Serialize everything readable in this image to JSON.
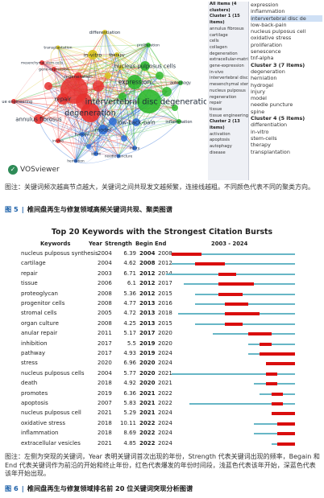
{
  "figure5": {
    "network_labels": [
      {
        "text": "differentiation",
        "id": "differentiation"
      },
      {
        "text": "proliferation",
        "id": "proliferation"
      },
      {
        "text": "transplantation",
        "id": "transplantation"
      },
      {
        "text": "in-vitro",
        "id": "in-vitro"
      },
      {
        "text": "therapy",
        "id": "therapy"
      },
      {
        "text": "mesenchymal stem-cells",
        "id": "mesenchymal"
      },
      {
        "text": "nucleus pulposus cells",
        "id": "np-cells"
      },
      {
        "text": "gene-expression",
        "id": "gene-expression"
      },
      {
        "text": "regeneration",
        "id": "regeneration"
      },
      {
        "text": "expression",
        "id": "expression"
      },
      {
        "text": "autophagy",
        "id": "autophagy"
      },
      {
        "text": "tissue engineering",
        "id": "tissue-engineering"
      },
      {
        "text": "repair",
        "id": "repair"
      },
      {
        "text": "intervertebral disc degeneration",
        "id": "ivdd"
      },
      {
        "text": "degeneration",
        "id": "degeneration"
      },
      {
        "text": "annulus fibrosus",
        "id": "annulus"
      },
      {
        "text": "low-back-pain",
        "id": "lbp"
      },
      {
        "text": "inflammation",
        "id": "inflammation"
      },
      {
        "text": "model",
        "id": "model"
      },
      {
        "text": "hydrogel",
        "id": "hydrogel"
      },
      {
        "text": "in-vivo",
        "id": "in-vivo"
      },
      {
        "text": "injury",
        "id": "injury"
      },
      {
        "text": "spine",
        "id": "spine"
      },
      {
        "text": "needle puncture",
        "id": "needle"
      },
      {
        "text": "herniation",
        "id": "herniation"
      }
    ],
    "vos_label": "VOSviewer",
    "cluster_panel": {
      "header": "All items (4 clusters)",
      "left": [
        {
          "text": "Cluster 1 (15 items)",
          "head": true
        },
        {
          "text": "annulus fibrosus"
        },
        {
          "text": "cartilage"
        },
        {
          "text": "cells"
        },
        {
          "text": "collagen"
        },
        {
          "text": "degeneration"
        },
        {
          "text": "extracellular-matrix"
        },
        {
          "text": "gene-expression"
        },
        {
          "text": "in-vivo"
        },
        {
          "text": "intervertebral disc"
        },
        {
          "text": "mesenchymal stem-ce"
        },
        {
          "text": "nucleus pulposus"
        },
        {
          "text": "regeneration"
        },
        {
          "text": "repair"
        },
        {
          "text": "tissue"
        },
        {
          "text": "tissue engineering"
        },
        {
          "text": "Cluster 2 (13 items)",
          "head": true
        },
        {
          "text": "activation"
        },
        {
          "text": "apoptosis"
        },
        {
          "text": "autophagy"
        },
        {
          "text": "disease"
        }
      ],
      "right": [
        {
          "text": "expression"
        },
        {
          "text": "inflammation"
        },
        {
          "text": "intervertebral disc de",
          "selected": true
        },
        {
          "text": "low-back-pain"
        },
        {
          "text": "nucleus pulposus cell"
        },
        {
          "text": "oxidative stress"
        },
        {
          "text": "proliferation"
        },
        {
          "text": "senescence"
        },
        {
          "text": "tnf-alpha"
        },
        {
          "text": "Cluster 3 (7 items)",
          "head": true
        },
        {
          "text": "degeneration"
        },
        {
          "text": "herniation"
        },
        {
          "text": "hydrogel"
        },
        {
          "text": "injury"
        },
        {
          "text": "model"
        },
        {
          "text": "needle puncture"
        },
        {
          "text": "spine"
        },
        {
          "text": "Cluster 4 (5 items)",
          "head": true
        },
        {
          "text": "differentiation"
        },
        {
          "text": "in-vitro"
        },
        {
          "text": "stem-cells"
        },
        {
          "text": "therapy"
        },
        {
          "text": "transplantation"
        }
      ]
    },
    "caption": "图注：关键词频次越高节点越大，关键词之间共现发文越频繁，连接线越粗。不同颜色代表不同的聚类方向。",
    "title_num": "图 5",
    "title_text": "椎间盘再生与修复领域高频关键词共现、聚类图谱"
  },
  "chart_data": {
    "type": "table",
    "title": "Top 20 Keywords with the Strongest Citation Bursts",
    "columns": [
      "Keywords",
      "Year",
      "Strength",
      "Begin",
      "End",
      "2003 - 2024"
    ],
    "timeline": [
      2003,
      2024
    ],
    "rows": [
      {
        "keyword": "nucleus pulposus synthesis",
        "year": 2004,
        "strength": "6.39",
        "begin": 2004,
        "end": 2008
      },
      {
        "keyword": "cartilage",
        "year": 2004,
        "strength": "4.62",
        "begin": 2008,
        "end": 2012
      },
      {
        "keyword": "repair",
        "year": 2003,
        "strength": "6.71",
        "begin": 2012,
        "end": 2014
      },
      {
        "keyword": "tissue",
        "year": 2006,
        "strength": "6.1",
        "begin": 2012,
        "end": 2017
      },
      {
        "keyword": "proteoglycan",
        "year": 2008,
        "strength": "5.36",
        "begin": 2012,
        "end": 2015
      },
      {
        "keyword": "progenitor cells",
        "year": 2008,
        "strength": "4.77",
        "begin": 2013,
        "end": 2016
      },
      {
        "keyword": "stromal cells",
        "year": 2005,
        "strength": "4.72",
        "begin": 2013,
        "end": 2018
      },
      {
        "keyword": "organ culture",
        "year": 2008,
        "strength": "4.25",
        "begin": 2013,
        "end": 2015
      },
      {
        "keyword": "anular repair",
        "year": 2011,
        "strength": "5.17",
        "begin": 2017,
        "end": 2020
      },
      {
        "keyword": "inhibition",
        "year": 2017,
        "strength": "5.5",
        "begin": 2019,
        "end": 2020
      },
      {
        "keyword": "pathway",
        "year": 2017,
        "strength": "4.93",
        "begin": 2019,
        "end": 2024
      },
      {
        "keyword": "stress",
        "year": 2020,
        "strength": "6.96",
        "begin": 2020,
        "end": 2024
      },
      {
        "keyword": "nucleus pulposus cells",
        "year": 2004,
        "strength": "5.77",
        "begin": 2020,
        "end": 2021
      },
      {
        "keyword": "death",
        "year": 2018,
        "strength": "4.92",
        "begin": 2020,
        "end": 2021
      },
      {
        "keyword": "promotes",
        "year": 2019,
        "strength": "6.36",
        "begin": 2021,
        "end": 2022
      },
      {
        "keyword": "apoptosis",
        "year": 2007,
        "strength": "5.83",
        "begin": 2021,
        "end": 2022
      },
      {
        "keyword": "nucleus pulposus cell",
        "year": 2021,
        "strength": "5.29",
        "begin": 2021,
        "end": 2024
      },
      {
        "keyword": "oxidative stress",
        "year": 2018,
        "strength": "10.11",
        "begin": 2022,
        "end": 2024
      },
      {
        "keyword": "inflammation",
        "year": 2018,
        "strength": "8.69",
        "begin": 2022,
        "end": 2024
      },
      {
        "keyword": "extracellular vesicles",
        "year": 2021,
        "strength": "4.85",
        "begin": 2022,
        "end": 2024
      }
    ],
    "colors": {
      "burst": "#d90e0e",
      "span": "#67b6c6"
    }
  },
  "figure6": {
    "caption": "图注：左侧为突现的关键词，Year 表明关键词首次出现的年份，Strength 代表关键词出现的频率，Begain 和 End 代表关键词作为前沿的开始和终止年份，红色代表爆发的年份时间段，浅蓝色代表该年开始，深蓝色代表该年开始出现。",
    "title_num": "图 6",
    "title_text": "椎间盘再生与修复领域排名前 20 位关键词突现分析图谱"
  }
}
